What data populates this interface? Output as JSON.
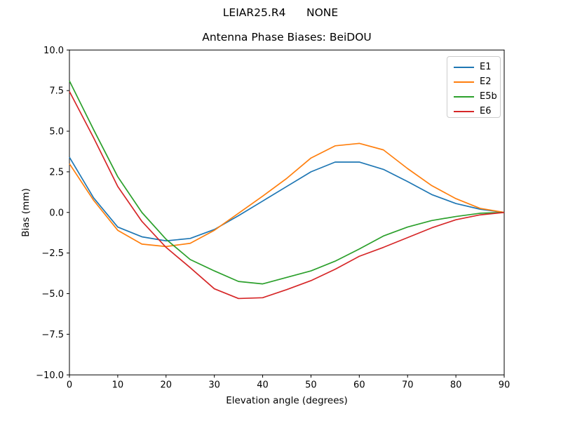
{
  "figure": {
    "suptitle": "LEIAR25.R4      NONE"
  },
  "chart_data": {
    "type": "line",
    "title": "Antenna Phase Biases: BeiDOU",
    "xlabel": "Elevation angle (degrees)",
    "ylabel": "Bias (mm)",
    "xlim": [
      0,
      90
    ],
    "ylim": [
      -10,
      10
    ],
    "xticks": [
      0,
      10,
      20,
      30,
      40,
      50,
      60,
      70,
      80,
      90
    ],
    "yticks": [
      -10,
      -7.5,
      -5,
      -2.5,
      0,
      2.5,
      5,
      7.5,
      10
    ],
    "grid": false,
    "legend_position": "upper right",
    "x": [
      0,
      5,
      10,
      15,
      20,
      25,
      30,
      35,
      40,
      45,
      50,
      55,
      60,
      65,
      70,
      75,
      80,
      85,
      90
    ],
    "series": [
      {
        "name": "E1",
        "color": "#1f77b4",
        "values": [
          3.4,
          0.9,
          -0.9,
          -1.5,
          -1.75,
          -1.6,
          -1.05,
          -0.2,
          0.7,
          1.6,
          2.5,
          3.1,
          3.1,
          2.65,
          1.9,
          1.1,
          0.55,
          0.2,
          0.0
        ]
      },
      {
        "name": "E2",
        "color": "#ff7f0e",
        "values": [
          3.0,
          0.75,
          -1.1,
          -1.95,
          -2.1,
          -1.9,
          -1.1,
          -0.05,
          1.0,
          2.1,
          3.35,
          4.1,
          4.25,
          3.85,
          2.7,
          1.65,
          0.85,
          0.25,
          0.0
        ]
      },
      {
        "name": "E5b",
        "color": "#2ca02c",
        "values": [
          8.1,
          5.1,
          2.2,
          0.0,
          -1.65,
          -2.9,
          -3.6,
          -4.25,
          -4.4,
          -4.0,
          -3.6,
          -3.0,
          -2.25,
          -1.45,
          -0.9,
          -0.5,
          -0.25,
          -0.05,
          0.0
        ]
      },
      {
        "name": "E6",
        "color": "#d62728",
        "values": [
          7.45,
          4.6,
          1.6,
          -0.55,
          -2.15,
          -3.4,
          -4.7,
          -5.3,
          -5.25,
          -4.75,
          -4.2,
          -3.5,
          -2.7,
          -2.15,
          -1.55,
          -0.95,
          -0.45,
          -0.15,
          0.0
        ]
      }
    ]
  }
}
